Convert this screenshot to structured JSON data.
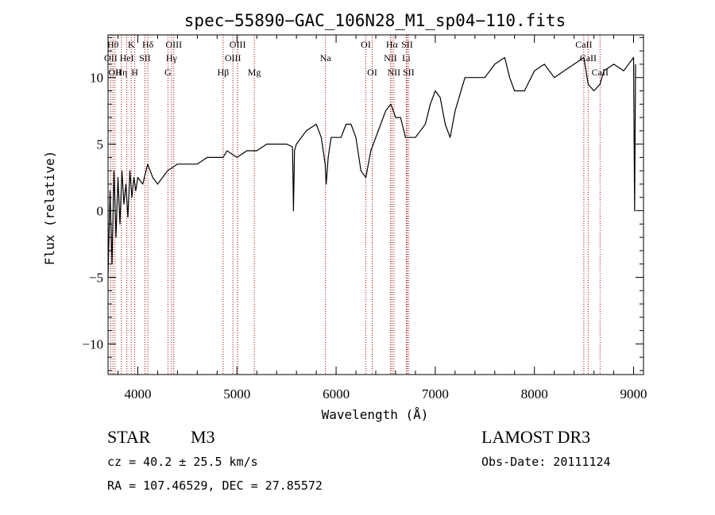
{
  "chart_data": {
    "type": "line",
    "title": "spec−55890−GAC_106N28_M1_sp04−110.fits",
    "xlabel": "Wavelength (Å)",
    "ylabel": "Flux (relative)",
    "xlim": [
      3700,
      9100
    ],
    "ylim": [
      -12.3,
      13.2
    ],
    "xticks": [
      4000,
      5000,
      6000,
      7000,
      8000,
      9000
    ],
    "yticks": [
      -10,
      -5,
      0,
      5,
      10
    ],
    "ytick_labels": [
      "−10",
      "−5",
      "0",
      "5",
      "10"
    ],
    "series": [
      {
        "name": "flux",
        "x": [
          3700,
          3720,
          3740,
          3760,
          3780,
          3800,
          3820,
          3840,
          3860,
          3880,
          3900,
          3920,
          3940,
          3960,
          3980,
          4000,
          4050,
          4100,
          4150,
          4200,
          4300,
          4400,
          4500,
          4600,
          4700,
          4800,
          4860,
          4900,
          5000,
          5100,
          5200,
          5300,
          5400,
          5500,
          5560,
          5570,
          5580,
          5600,
          5700,
          5800,
          5850,
          5890,
          5900,
          5920,
          5950,
          6000,
          6050,
          6100,
          6150,
          6200,
          6250,
          6300,
          6350,
          6400,
          6450,
          6500,
          6550,
          6563,
          6600,
          6650,
          6700,
          6750,
          6800,
          6850,
          6900,
          6950,
          7000,
          7050,
          7100,
          7150,
          7200,
          7300,
          7400,
          7500,
          7600,
          7700,
          7750,
          7800,
          7900,
          8000,
          8100,
          8200,
          8300,
          8400,
          8498,
          8542,
          8600,
          8662,
          8700,
          8800,
          8900,
          9000,
          9010,
          9020
        ],
        "y": [
          -5.0,
          1.5,
          -4.0,
          3.0,
          -2.0,
          2.5,
          -1.0,
          3.0,
          0.5,
          2.0,
          -0.5,
          3.0,
          1.0,
          2.5,
          1.5,
          2.5,
          2.0,
          3.5,
          2.5,
          2.0,
          3.0,
          3.5,
          3.5,
          3.5,
          4.0,
          4.0,
          4.0,
          4.5,
          4.0,
          4.5,
          4.5,
          5.0,
          5.0,
          5.0,
          4.8,
          0.0,
          4.5,
          5.0,
          6.0,
          6.5,
          5.5,
          3.5,
          2.0,
          4.0,
          5.5,
          5.5,
          5.5,
          6.5,
          6.5,
          5.5,
          3.0,
          2.5,
          4.5,
          5.5,
          6.5,
          7.5,
          8.0,
          7.8,
          7.0,
          7.0,
          5.5,
          5.5,
          5.5,
          6.0,
          6.5,
          8.0,
          9.0,
          8.5,
          6.5,
          5.5,
          7.5,
          10.0,
          10.0,
          10.0,
          11.0,
          11.5,
          10.0,
          9.0,
          9.0,
          10.5,
          11.0,
          10.0,
          10.5,
          11.0,
          11.5,
          9.5,
          9.0,
          9.5,
          10.5,
          11.0,
          10.5,
          11.5,
          0.0,
          11.0
        ]
      }
    ],
    "lines": [
      {
        "wavelength": 3750,
        "label": "Hθ",
        "row": 1
      },
      {
        "wavelength": 3727,
        "label": "OII",
        "row": 2
      },
      {
        "wavelength": 3770,
        "label": "OII",
        "row": 3
      },
      {
        "wavelength": 3835,
        "label": "Hη",
        "row": 3
      },
      {
        "wavelength": 3889,
        "label": "HeI",
        "row": 2
      },
      {
        "wavelength": 3934,
        "label": "K",
        "row": 1
      },
      {
        "wavelength": 3969,
        "label": "H",
        "row": 3
      },
      {
        "wavelength": 4072,
        "label": "SII",
        "row": 2
      },
      {
        "wavelength": 4102,
        "label": "Hδ",
        "row": 1
      },
      {
        "wavelength": 4304,
        "label": "G",
        "row": 3
      },
      {
        "wavelength": 4340,
        "label": "Hγ",
        "row": 2
      },
      {
        "wavelength": 4363,
        "label": "OIII",
        "row": 1
      },
      {
        "wavelength": 4861,
        "label": "Hβ",
        "row": 3
      },
      {
        "wavelength": 4959,
        "label": "OIII",
        "row": 2
      },
      {
        "wavelength": 5007,
        "label": "OIII",
        "row": 1
      },
      {
        "wavelength": 5175,
        "label": "Mg",
        "row": 3
      },
      {
        "wavelength": 5893,
        "label": "Na",
        "row": 2
      },
      {
        "wavelength": 6300,
        "label": "OI",
        "row": 1
      },
      {
        "wavelength": 6364,
        "label": "OI",
        "row": 3
      },
      {
        "wavelength": 6548,
        "label": "NII",
        "row": 2
      },
      {
        "wavelength": 6563,
        "label": "Hα",
        "row": 1
      },
      {
        "wavelength": 6583,
        "label": "NII",
        "row": 3
      },
      {
        "wavelength": 6708,
        "label": "Li",
        "row": 2
      },
      {
        "wavelength": 6716,
        "label": "SII",
        "row": 1
      },
      {
        "wavelength": 6731,
        "label": "SII",
        "row": 3
      },
      {
        "wavelength": 8498,
        "label": "CaII",
        "row": 1
      },
      {
        "wavelength": 8542,
        "label": "CaII",
        "row": 2
      },
      {
        "wavelength": 8662,
        "label": "CaII",
        "row": 3
      }
    ]
  },
  "info": {
    "object_type": "STAR",
    "subclass": "M3",
    "survey": "LAMOST DR3",
    "cz": "cz = 40.2 ± 25.5 km/s",
    "obs_date": "Obs-Date: 20111124",
    "radec": "RA = 107.46529, DEC =  27.85572"
  }
}
